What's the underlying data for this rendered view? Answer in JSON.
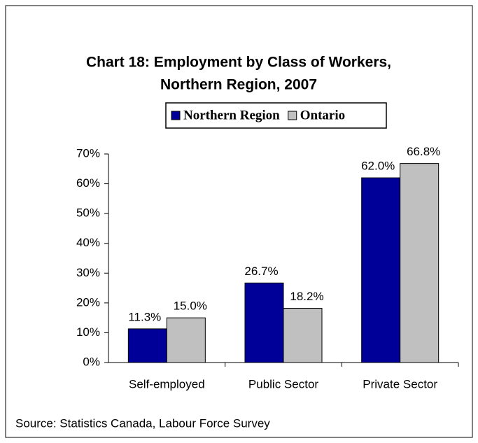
{
  "chart_data": {
    "type": "bar",
    "title": "Chart 18: Employment by Class of Workers,",
    "subtitle": "Northern Region, 2007",
    "categories": [
      "Self-employed",
      "Public Sector",
      "Private Sector"
    ],
    "series": [
      {
        "name": "Northern Region",
        "color": "#000099",
        "values": [
          11.3,
          26.7,
          62.0
        ],
        "value_labels": [
          "11.3%",
          "26.7%",
          "62.0%"
        ]
      },
      {
        "name": "Ontario",
        "color": "#c0c0c0",
        "values": [
          15.0,
          18.2,
          66.8
        ],
        "value_labels": [
          "15.0%",
          "18.2%",
          "66.8%"
        ]
      }
    ],
    "ylim": [
      0,
      70
    ],
    "yticks": [
      {
        "value": 0,
        "label": "0%"
      },
      {
        "value": 10,
        "label": "10%"
      },
      {
        "value": 20,
        "label": "20%"
      },
      {
        "value": 30,
        "label": "30%"
      },
      {
        "value": 40,
        "label": "40%"
      },
      {
        "value": 50,
        "label": "50%"
      },
      {
        "value": 60,
        "label": "60%"
      },
      {
        "value": 70,
        "label": "70%"
      }
    ],
    "legend": "top",
    "source": "Source: Statistics Canada, Labour Force Survey"
  }
}
